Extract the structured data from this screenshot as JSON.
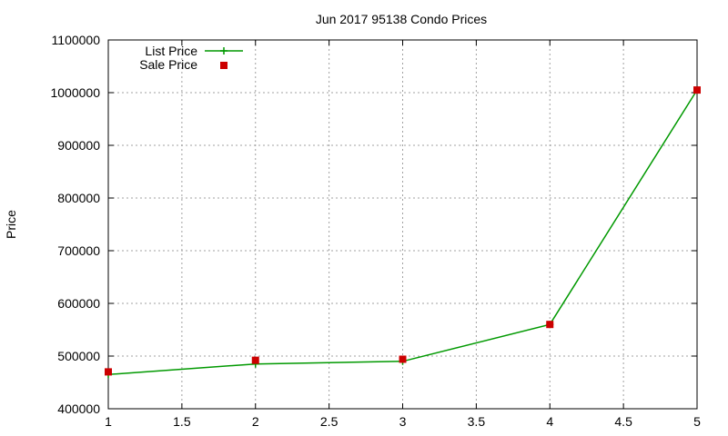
{
  "chart_data": {
    "type": "line",
    "title": "Jun 2017 95138 Condo Prices",
    "xlabel": "",
    "ylabel": "Price",
    "xlim": [
      1,
      5
    ],
    "ylim": [
      400000,
      1100000
    ],
    "x_ticks": [
      1,
      1.5,
      2,
      2.5,
      3,
      3.5,
      4,
      4.5,
      5
    ],
    "y_ticks": [
      400000,
      500000,
      600000,
      700000,
      800000,
      900000,
      1000000,
      1100000
    ],
    "grid": true,
    "legend_position": "top-left",
    "series": [
      {
        "name": "List Price",
        "style": "line-with-plus-markers",
        "color": "#009900",
        "x": [
          1,
          2,
          3,
          4,
          5
        ],
        "y": [
          465000,
          485000,
          490000,
          560000,
          1005000
        ]
      },
      {
        "name": "Sale Price",
        "style": "square-markers",
        "color": "#cc0000",
        "x": [
          1,
          2,
          3,
          4,
          5
        ],
        "y": [
          470000,
          492000,
          494000,
          560000,
          1005000
        ]
      }
    ]
  }
}
